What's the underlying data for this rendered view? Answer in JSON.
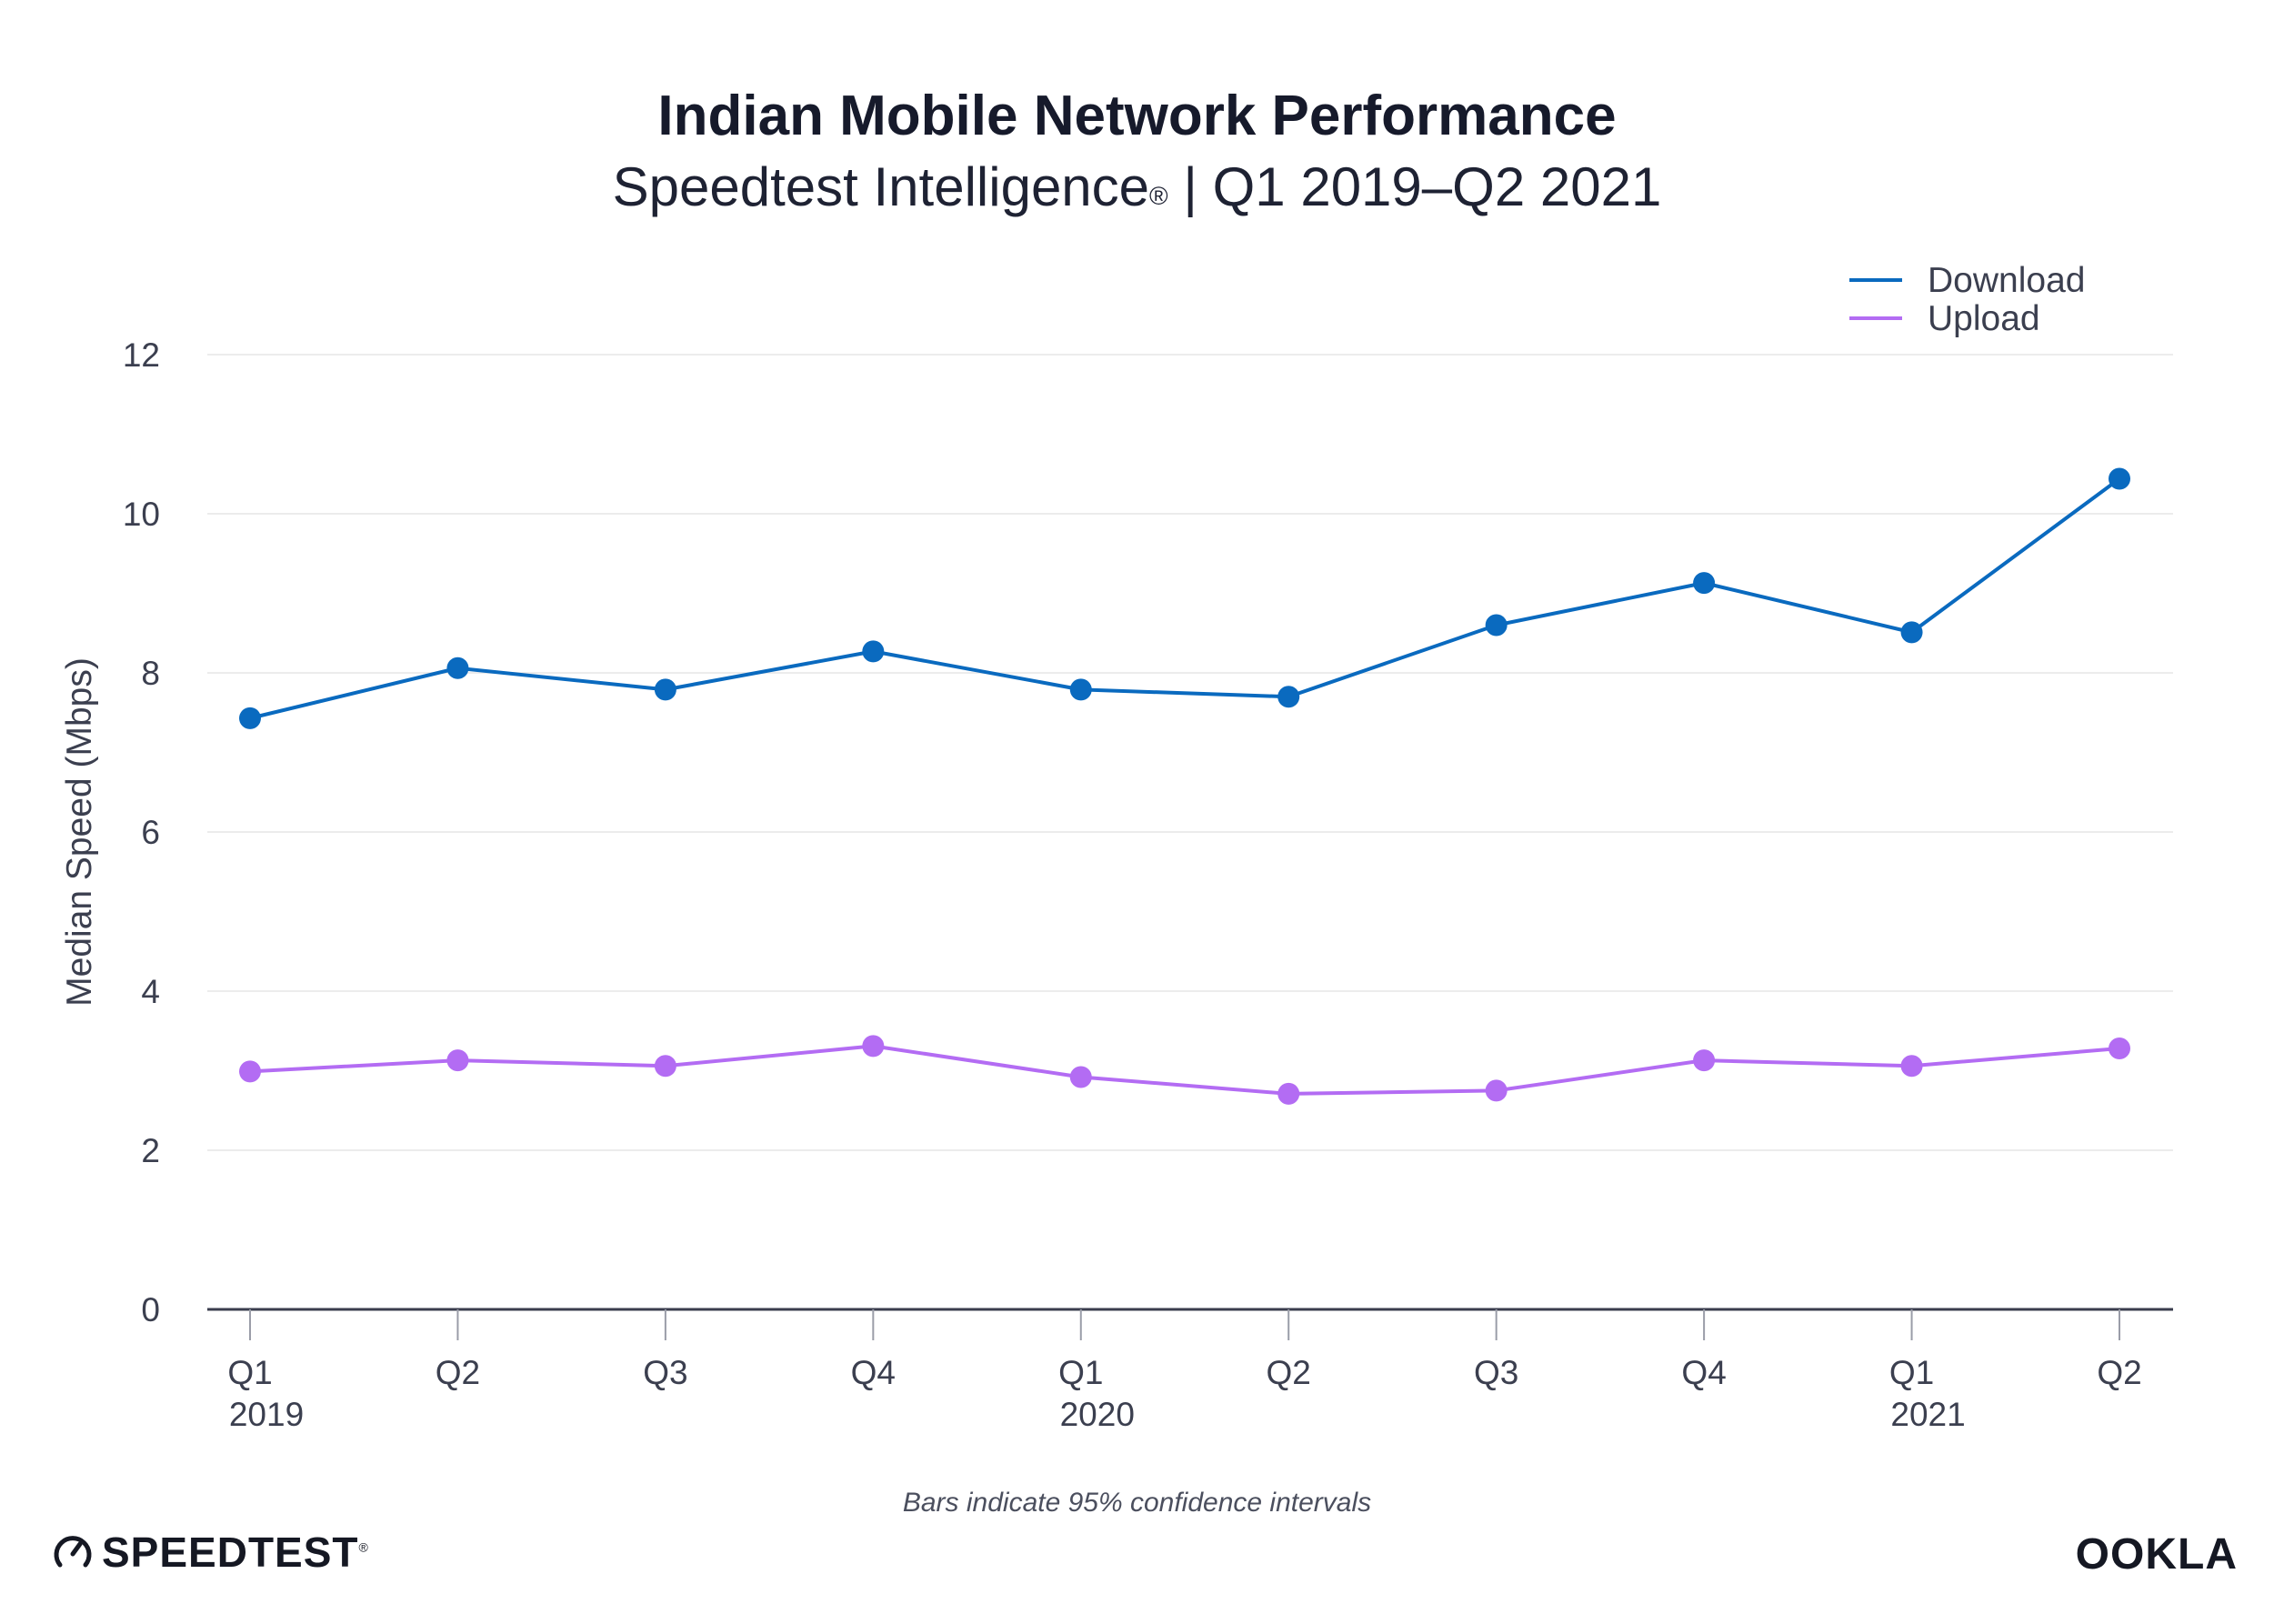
{
  "header": {
    "title": "Indian Mobile Network Performance",
    "subtitle": "Speedtest Intelligence",
    "subtitle_mark": "®",
    "subtitle_range": " | Q1 2019–Q2 2021"
  },
  "chart_data": {
    "type": "line",
    "title": "Indian Mobile Network Performance",
    "subtitle": "Speedtest Intelligence® | Q1 2019–Q2 2021",
    "xlabel": "",
    "ylabel": "Median Speed (Mbps)",
    "ylim": [
      0,
      12
    ],
    "yticks": [
      "0",
      "2",
      "4",
      "6",
      "8",
      "10",
      "12"
    ],
    "grid": true,
    "legend_position": "top-right",
    "categories": [
      {
        "q": "Q1",
        "year": "2019"
      },
      {
        "q": "Q2",
        "year": ""
      },
      {
        "q": "Q3",
        "year": ""
      },
      {
        "q": "Q4",
        "year": ""
      },
      {
        "q": "Q1",
        "year": "2020"
      },
      {
        "q": "Q2",
        "year": ""
      },
      {
        "q": "Q3",
        "year": ""
      },
      {
        "q": "Q4",
        "year": ""
      },
      {
        "q": "Q1",
        "year": "2021"
      },
      {
        "q": "Q2",
        "year": ""
      }
    ],
    "series": [
      {
        "name": "Download",
        "color": "#0a6abf",
        "values": [
          7.43,
          8.06,
          7.79,
          8.27,
          7.79,
          7.7,
          8.6,
          9.13,
          8.51,
          10.44
        ]
      },
      {
        "name": "Upload",
        "color": "#b36cf3",
        "values": [
          2.99,
          3.13,
          3.06,
          3.31,
          2.92,
          2.71,
          2.75,
          3.13,
          3.06,
          3.28
        ]
      }
    ],
    "note": "Bars indicate 95% confidence intervals"
  },
  "branding": {
    "speedtest": "SPEEDTEST",
    "speedtest_mark": "®",
    "ookla": "OOKLA",
    "icon": "speedtest-gauge-icon"
  }
}
